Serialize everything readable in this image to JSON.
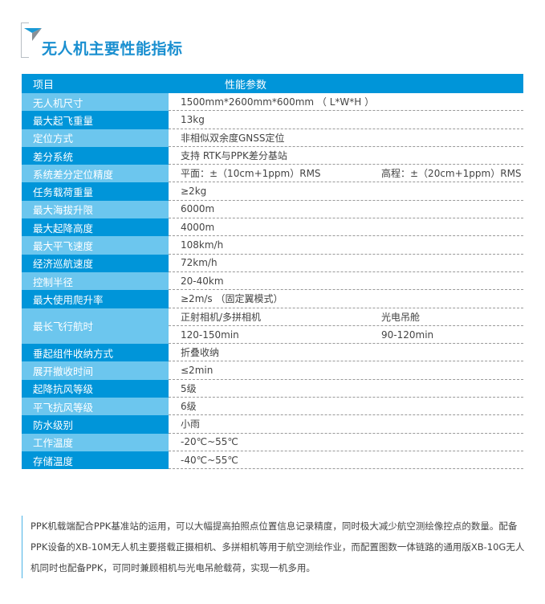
{
  "title": "无人机主要性能指标",
  "header": {
    "col1": "项目",
    "col2": "性能参数"
  },
  "rows": [
    {
      "label": "无人机尺寸",
      "value": "1500mm*2600mm*600mm （ L*W*H ）",
      "shade": "light"
    },
    {
      "label": "最大起飞重量",
      "value": "13kg",
      "shade": "dark"
    },
    {
      "label": "定位方式",
      "value": "非相似双余度GNSS定位",
      "shade": "light"
    },
    {
      "label": "差分系统",
      "value": "支持 RTK与PPK差分基站",
      "shade": "dark"
    },
    {
      "label": "系统差分定位精度",
      "value": "平面：±（10cm+1ppm）RMS",
      "value2": "高程：±（20cm+1ppm）RMS",
      "shade": "light"
    },
    {
      "label": "任务载荷重量",
      "value": "≥2kg",
      "shade": "dark"
    },
    {
      "label": "最大海拔升限",
      "value": "6000m",
      "shade": "light"
    },
    {
      "label": "最大起降高度",
      "value": "4000m",
      "shade": "dark"
    },
    {
      "label": "最大平飞速度",
      "value": "108km/h",
      "shade": "light"
    },
    {
      "label": "经济巡航速度",
      "value": "72km/h",
      "shade": "dark"
    },
    {
      "label": "控制半径",
      "value": "20-40km",
      "shade": "light"
    },
    {
      "label": "最大使用爬升率",
      "value": "≥2m/s （固定翼模式）",
      "shade": "dark"
    },
    {
      "label": "最长飞行航时",
      "value": "正射相机/多拼相机",
      "value2": "光电吊舱",
      "value3": "120-150min",
      "value4": "90-120min",
      "shade": "light",
      "tall": true
    },
    {
      "label": "垂起组件收纳方式",
      "value": "折叠收纳",
      "shade": "dark"
    },
    {
      "label": "展开撤收时间",
      "value": "≤2min",
      "shade": "light"
    },
    {
      "label": "起降抗风等级",
      "value": "5级",
      "shade": "dark"
    },
    {
      "label": "平飞抗风等级",
      "value": "6级",
      "shade": "light"
    },
    {
      "label": "防水级别",
      "value": "小雨",
      "shade": "dark"
    },
    {
      "label": "工作温度",
      "value": "-20℃~55℃",
      "shade": "light"
    },
    {
      "label": "存储温度",
      "value": "-40℃~55℃",
      "shade": "dark"
    }
  ],
  "paragraph": "PPK机载端配合PPK基准站的运用，可以大幅提高拍照点位置信息记录精度，同时极大减少航空测绘像控点的数量。配备PPK设备的XB-10M无人机主要搭载正摄相机、多拼相机等用于航空测绘作业，而配置图数一体链路的通用版XB-10G无人机同时也配备PPK，可同时兼顾相机与光电吊舱载荷，实现一机多用。",
  "colors": {
    "dark": "#0095d9",
    "light": "#6cc6ee",
    "title": "#1a8fd0"
  }
}
